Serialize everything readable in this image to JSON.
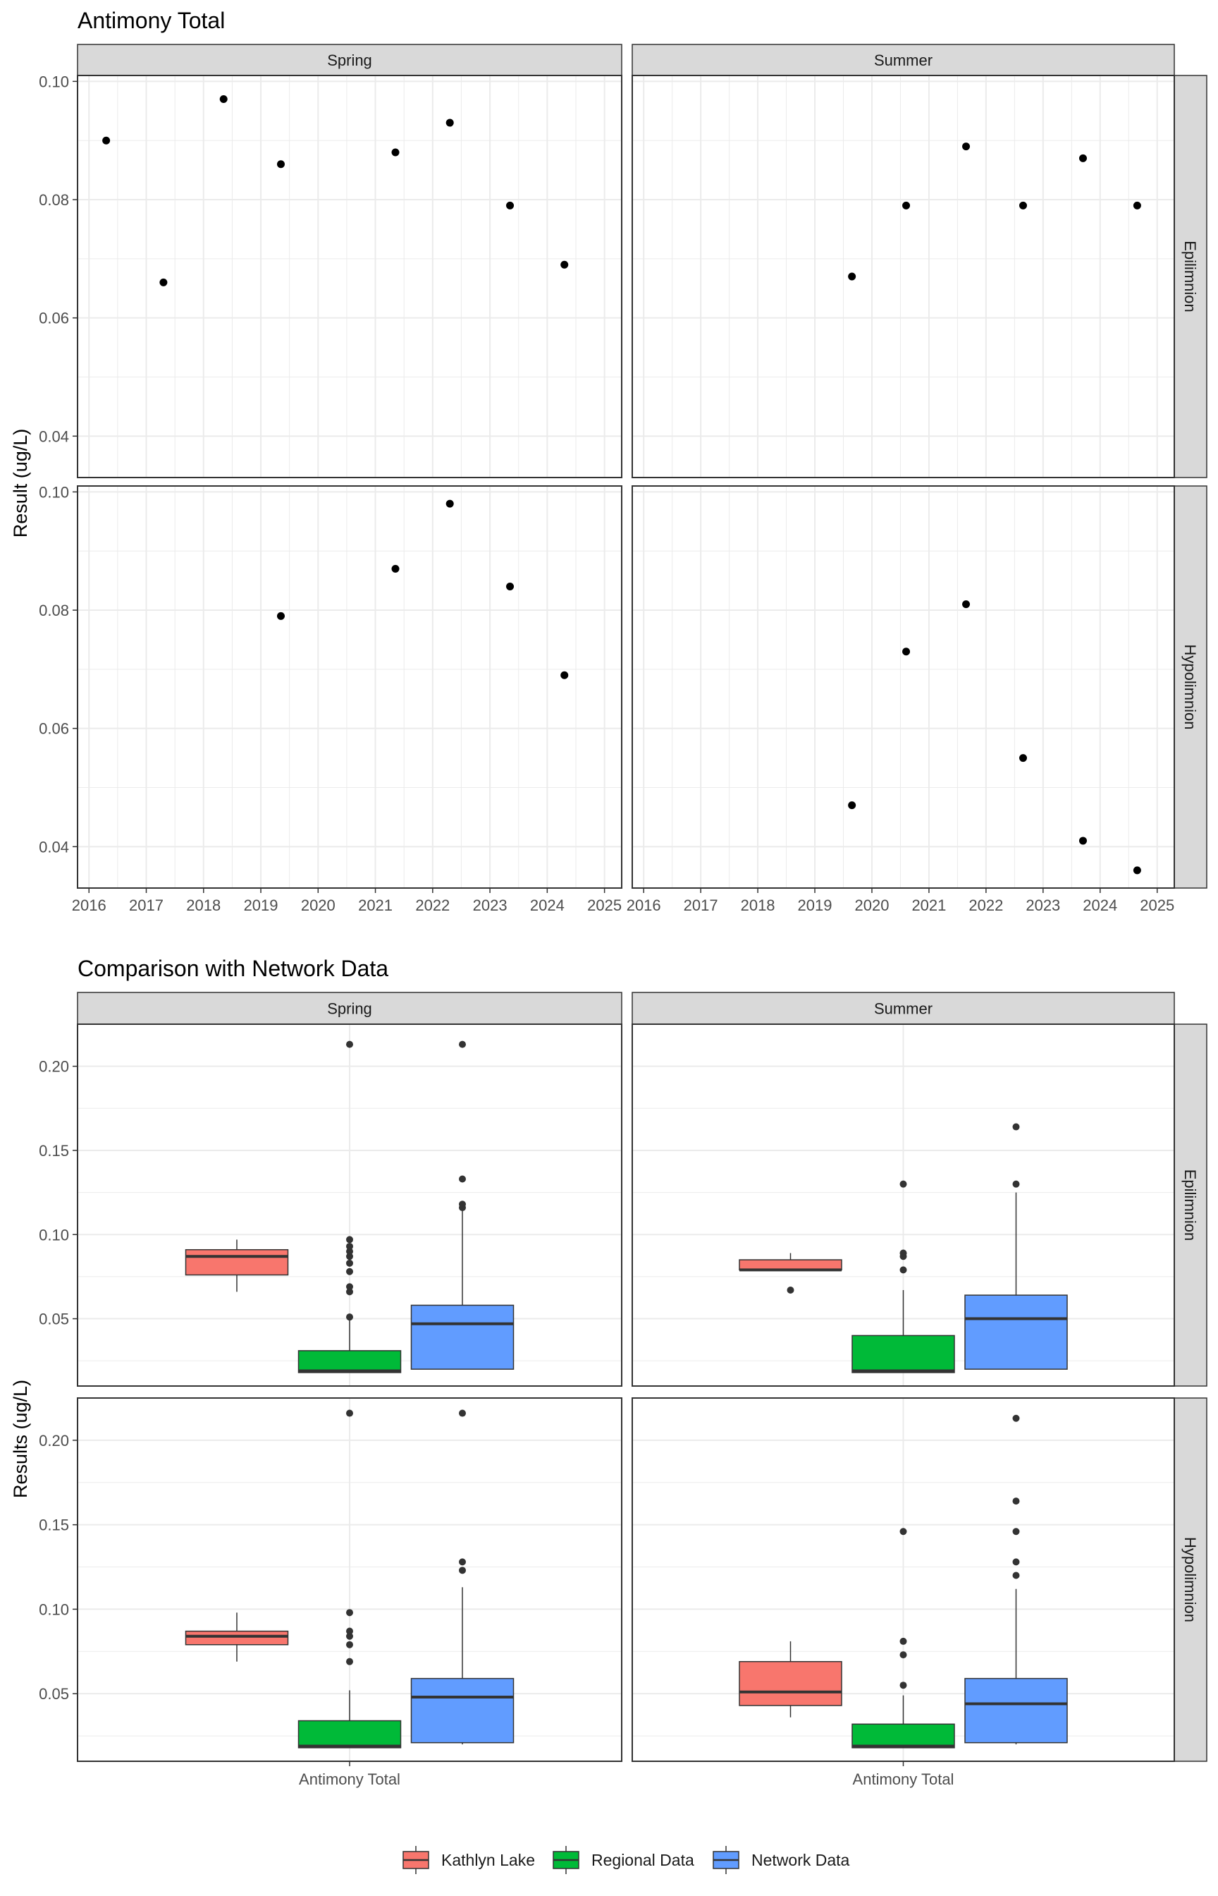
{
  "colors": {
    "kathlyn": "#F8766D",
    "regional": "#00BA38",
    "network": "#619CFF",
    "strip_bg": "#D9D9D9",
    "grid": "#EBEBEB",
    "panel_border": "#333333",
    "text": "#4D4D4D",
    "title": "#000000"
  },
  "chart_data": [
    {
      "type": "scatter",
      "title": "Antimony Total",
      "ylabel": "Result (ug/L)",
      "xlabel": "",
      "grid": true,
      "ylim": [
        0.033,
        0.101
      ],
      "xlim": [
        2015.8,
        2025.3
      ],
      "yticks": [
        0.04,
        0.06,
        0.08,
        0.1
      ],
      "ytick_labels": [
        "0.04",
        "0.06",
        "0.08",
        "0.10"
      ],
      "xticks": [
        2016,
        2017,
        2018,
        2019,
        2020,
        2021,
        2022,
        2023,
        2024,
        2025
      ],
      "xtick_labels": [
        "2016",
        "2017",
        "2018",
        "2019",
        "2020",
        "2021",
        "2022",
        "2023",
        "2024",
        "2025"
      ],
      "cols": [
        "Spring",
        "Summer"
      ],
      "rows": [
        "Epilimnion",
        "Hypolimnion"
      ],
      "panels": [
        {
          "row": "Epilimnion",
          "col": "Spring",
          "points": [
            {
              "x": 2016.3,
              "y": 0.09
            },
            {
              "x": 2017.3,
              "y": 0.066
            },
            {
              "x": 2018.35,
              "y": 0.097
            },
            {
              "x": 2019.35,
              "y": 0.086
            },
            {
              "x": 2021.35,
              "y": 0.088
            },
            {
              "x": 2022.3,
              "y": 0.093
            },
            {
              "x": 2023.35,
              "y": 0.079
            },
            {
              "x": 2024.3,
              "y": 0.069
            }
          ]
        },
        {
          "row": "Epilimnion",
          "col": "Summer",
          "points": [
            {
              "x": 2019.65,
              "y": 0.067
            },
            {
              "x": 2020.6,
              "y": 0.079
            },
            {
              "x": 2021.65,
              "y": 0.089
            },
            {
              "x": 2022.65,
              "y": 0.079
            },
            {
              "x": 2023.7,
              "y": 0.087
            },
            {
              "x": 2024.65,
              "y": 0.079
            }
          ]
        },
        {
          "row": "Hypolimnion",
          "col": "Spring",
          "points": [
            {
              "x": 2019.35,
              "y": 0.079
            },
            {
              "x": 2021.35,
              "y": 0.087
            },
            {
              "x": 2022.3,
              "y": 0.098
            },
            {
              "x": 2023.35,
              "y": 0.084
            },
            {
              "x": 2024.3,
              "y": 0.069
            }
          ]
        },
        {
          "row": "Hypolimnion",
          "col": "Summer",
          "points": [
            {
              "x": 2019.65,
              "y": 0.047
            },
            {
              "x": 2020.6,
              "y": 0.073
            },
            {
              "x": 2021.65,
              "y": 0.081
            },
            {
              "x": 2022.65,
              "y": 0.055
            },
            {
              "x": 2023.7,
              "y": 0.041
            },
            {
              "x": 2024.65,
              "y": 0.036
            }
          ]
        }
      ]
    },
    {
      "type": "box",
      "title": "Comparison with Network Data",
      "ylabel": "Results (ug/L)",
      "xlabel": "",
      "grid": true,
      "ylim": [
        0.01,
        0.225
      ],
      "yticks": [
        0.05,
        0.1,
        0.15,
        0.2
      ],
      "ytick_labels": [
        "0.05",
        "0.10",
        "0.15",
        "0.20"
      ],
      "categories": [
        "Antimony Total"
      ],
      "cols": [
        "Spring",
        "Summer"
      ],
      "rows": [
        "Epilimnion",
        "Hypolimnion"
      ],
      "series": [
        {
          "name": "Kathlyn Lake",
          "color": "#F8766D"
        },
        {
          "name": "Regional Data",
          "color": "#00BA38"
        },
        {
          "name": "Network Data",
          "color": "#619CFF"
        }
      ],
      "legend_position": "bottom",
      "panels": [
        {
          "row": "Epilimnion",
          "col": "Spring",
          "boxes": [
            {
              "series": "Kathlyn Lake",
              "whisker_low": 0.066,
              "q1": 0.076,
              "median": 0.087,
              "q3": 0.091,
              "whisker_high": 0.097,
              "outliers": []
            },
            {
              "series": "Regional Data",
              "whisker_low": 0.018,
              "q1": 0.018,
              "median": 0.019,
              "q3": 0.031,
              "whisker_high": 0.05,
              "outliers": [
                0.051,
                0.066,
                0.069,
                0.078,
                0.083,
                0.087,
                0.09,
                0.093,
                0.097,
                0.213
              ]
            },
            {
              "series": "Network Data",
              "whisker_low": 0.02,
              "q1": 0.02,
              "median": 0.047,
              "q3": 0.058,
              "whisker_high": 0.114,
              "outliers": [
                0.116,
                0.118,
                0.133,
                0.213
              ]
            }
          ]
        },
        {
          "row": "Epilimnion",
          "col": "Summer",
          "boxes": [
            {
              "series": "Kathlyn Lake",
              "whisker_low": 0.079,
              "q1": 0.079,
              "median": 0.079,
              "q3": 0.085,
              "whisker_high": 0.089,
              "outliers": [
                0.067
              ]
            },
            {
              "series": "Regional Data",
              "whisker_low": 0.018,
              "q1": 0.018,
              "median": 0.019,
              "q3": 0.04,
              "whisker_high": 0.067,
              "outliers": [
                0.079,
                0.087,
                0.089,
                0.13
              ]
            },
            {
              "series": "Network Data",
              "whisker_low": 0.02,
              "q1": 0.02,
              "median": 0.05,
              "q3": 0.064,
              "whisker_high": 0.125,
              "outliers": [
                0.13,
                0.164
              ]
            }
          ]
        },
        {
          "row": "Hypolimnion",
          "col": "Spring",
          "boxes": [
            {
              "series": "Kathlyn Lake",
              "whisker_low": 0.069,
              "q1": 0.079,
              "median": 0.084,
              "q3": 0.087,
              "whisker_high": 0.098,
              "outliers": []
            },
            {
              "series": "Regional Data",
              "whisker_low": 0.018,
              "q1": 0.018,
              "median": 0.019,
              "q3": 0.034,
              "whisker_high": 0.052,
              "outliers": [
                0.069,
                0.079,
                0.084,
                0.087,
                0.098,
                0.216
              ]
            },
            {
              "series": "Network Data",
              "whisker_low": 0.02,
              "q1": 0.021,
              "median": 0.048,
              "q3": 0.059,
              "whisker_high": 0.113,
              "outliers": [
                0.123,
                0.128,
                0.216
              ]
            }
          ]
        },
        {
          "row": "Hypolimnion",
          "col": "Summer",
          "boxes": [
            {
              "series": "Kathlyn Lake",
              "whisker_low": 0.036,
              "q1": 0.043,
              "median": 0.051,
              "q3": 0.069,
              "whisker_high": 0.081,
              "outliers": []
            },
            {
              "series": "Regional Data",
              "whisker_low": 0.018,
              "q1": 0.018,
              "median": 0.019,
              "q3": 0.032,
              "whisker_high": 0.049,
              "outliers": [
                0.055,
                0.073,
                0.081,
                0.146
              ]
            },
            {
              "series": "Network Data",
              "whisker_low": 0.02,
              "q1": 0.021,
              "median": 0.044,
              "q3": 0.059,
              "whisker_high": 0.112,
              "outliers": [
                0.12,
                0.128,
                0.146,
                0.164,
                0.213
              ]
            }
          ]
        }
      ]
    }
  ]
}
